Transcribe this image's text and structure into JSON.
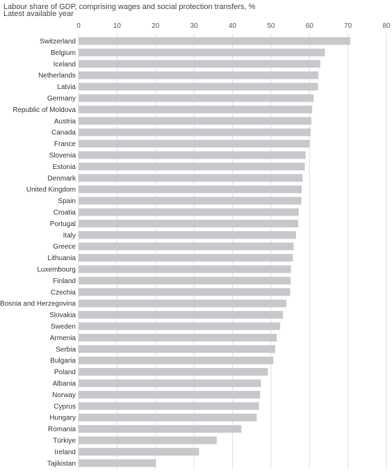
{
  "title": "Labour share of GDP, comprising wages and social protection transfers, %",
  "subtitle": "Latest available year",
  "colors": {
    "bar": "#c8c8cc",
    "grid": "#e0e0e0",
    "text": "#333333"
  },
  "chart_data": {
    "type": "bar",
    "orientation": "horizontal",
    "title": "Labour share of GDP, comprising wages and social protection transfers, %",
    "subtitle": "Latest available year",
    "xlim": [
      0,
      80
    ],
    "x_ticks": [
      0,
      10,
      20,
      30,
      40,
      50,
      60,
      70,
      80
    ],
    "x_axis_position": "top",
    "grid": true,
    "categories": [
      "Switzerland",
      "Belgium",
      "Iceland",
      "Netherlands",
      "Latvia",
      "Germany",
      "Republic of Moldova",
      "Austria",
      "Canada",
      "France",
      "Slovenia",
      "Estonia",
      "Denmark",
      "United Kingdom",
      "Spain",
      "Croatia",
      "Portugal",
      "Italy",
      "Greece",
      "Lithuania",
      "Luxembourg",
      "Finland",
      "Czechia",
      "Bosnia and Herzegovina",
      "Slovakia",
      "Sweden",
      "Armenia",
      "Serbia",
      "Bulgaria",
      "Poland",
      "Albania",
      "Norway",
      "Cyprus",
      "Hungary",
      "Romania",
      "Türkiye",
      "Ireland",
      "Tajikistan"
    ],
    "values": [
      70.6,
      64.0,
      62.8,
      62.3,
      62.2,
      61.1,
      60.7,
      60.5,
      60.3,
      60.1,
      59.0,
      58.8,
      58.2,
      58.0,
      57.9,
      57.2,
      57.1,
      56.5,
      55.9,
      55.7,
      55.2,
      55.1,
      55.0,
      54.0,
      53.1,
      52.4,
      51.5,
      51.1,
      50.6,
      49.2,
      47.4,
      47.2,
      46.9,
      46.3,
      42.3,
      35.9,
      31.3,
      20.1
    ]
  }
}
